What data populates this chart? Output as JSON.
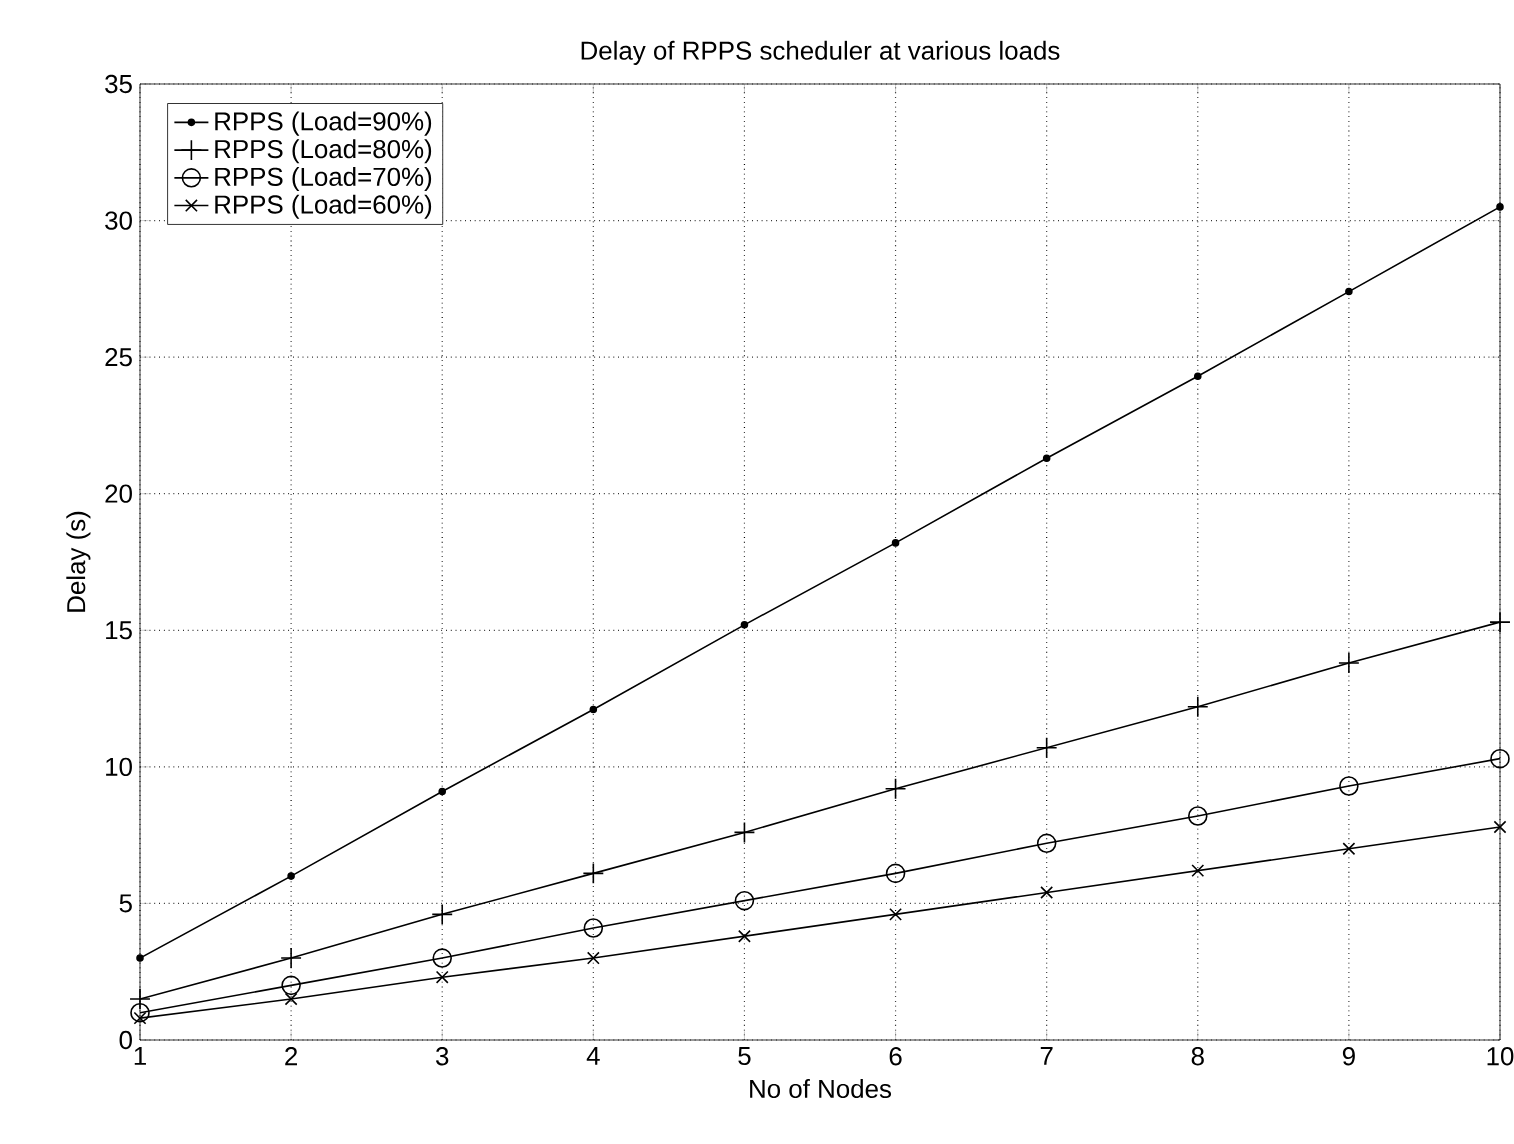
{
  "chart_data": {
    "type": "line",
    "title": "Delay of RPPS scheduler at various loads",
    "xlabel": "No of Nodes",
    "ylabel": "Delay (s)",
    "x": [
      1,
      2,
      3,
      4,
      5,
      6,
      7,
      8,
      9,
      10
    ],
    "series": [
      {
        "name": "RPPS (Load=90%)",
        "color": "#000000",
        "marker": "circle",
        "values": [
          3.0,
          6.0,
          9.1,
          12.1,
          15.2,
          18.2,
          21.3,
          24.3,
          27.4,
          30.5
        ]
      },
      {
        "name": "RPPS (Load=80%)",
        "color": "#000000",
        "marker": "cross",
        "values": [
          1.5,
          3.0,
          4.6,
          6.1,
          7.6,
          9.2,
          10.7,
          12.2,
          13.8,
          15.3
        ]
      },
      {
        "name": "RPPS (Load=70%)",
        "color": "#000000",
        "marker": "circle",
        "values": [
          1.0,
          2.0,
          3.0,
          4.1,
          5.1,
          6.1,
          7.2,
          8.2,
          9.3,
          10.3
        ]
      },
      {
        "name": "RPPS (Load=60%)",
        "color": "#000000",
        "marker": "cross",
        "values": [
          0.8,
          1.5,
          2.3,
          3.0,
          3.8,
          4.6,
          5.4,
          6.2,
          7.0,
          7.8
        ]
      }
    ],
    "xlim": [
      1,
      10
    ],
    "ylim": [
      0,
      35
    ],
    "xticks": [
      1,
      2,
      3,
      4,
      5,
      6,
      7,
      8,
      9,
      10
    ],
    "yticks": [
      0,
      5,
      10,
      15,
      20,
      25,
      30,
      35
    ],
    "grid": true,
    "legend": "top left",
    "line_style": "solid"
  }
}
